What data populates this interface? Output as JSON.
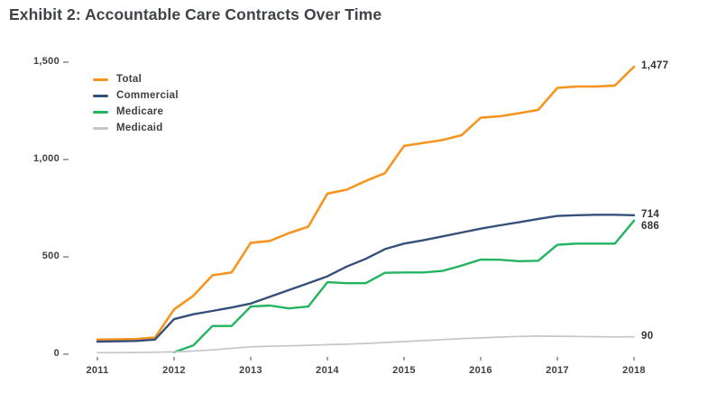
{
  "title": "Exhibit 2: Accountable Care Contracts Over Time",
  "chart_data": {
    "type": "line",
    "title": "Exhibit 2: Accountable Care Contracts Over Time",
    "xlabel": "",
    "ylabel": "",
    "grid": false,
    "legend_position": "top-left",
    "xlim": [
      2011,
      2018
    ],
    "ylim": [
      0,
      1500
    ],
    "x_ticks": [
      {
        "label": "2011",
        "value": 2011
      },
      {
        "label": "2012",
        "value": 2012
      },
      {
        "label": "2013",
        "value": 2013
      },
      {
        "label": "2014",
        "value": 2014
      },
      {
        "label": "2015",
        "value": 2015
      },
      {
        "label": "2016",
        "value": 2016
      },
      {
        "label": "2017",
        "value": 2017
      },
      {
        "label": "2018",
        "value": 2018
      }
    ],
    "y_ticks": [
      {
        "label": "0",
        "value": 0
      },
      {
        "label": "500",
        "value": 500
      },
      {
        "label": "1,000",
        "value": 1000
      },
      {
        "label": "1,500",
        "value": 1500
      }
    ],
    "x": [
      2011,
      2011.25,
      2011.5,
      2011.75,
      2012,
      2012.25,
      2012.5,
      2012.75,
      2013,
      2013.25,
      2013.5,
      2013.75,
      2014,
      2014.25,
      2014.5,
      2014.75,
      2015,
      2015.25,
      2015.5,
      2015.75,
      2016,
      2016.25,
      2016.5,
      2016.75,
      2017,
      2017.25,
      2017.5,
      2017.75,
      2018
    ],
    "series": [
      {
        "name": "Total",
        "color": "#F7941E",
        "stroke_width": 2.6,
        "end_label": "1,477",
        "values": [
          75,
          76,
          78,
          85,
          230,
          300,
          405,
          420,
          572,
          582,
          622,
          655,
          825,
          845,
          890,
          930,
          1070,
          1085,
          1100,
          1125,
          1215,
          1222,
          1238,
          1255,
          1368,
          1375,
          1375,
          1380,
          1477
        ]
      },
      {
        "name": "Commercial",
        "color": "#35507A",
        "stroke_width": 2.4,
        "end_label": "714",
        "values": [
          65,
          66,
          68,
          75,
          180,
          205,
          222,
          240,
          260,
          295,
          330,
          365,
          400,
          450,
          490,
          540,
          568,
          585,
          605,
          625,
          645,
          662,
          678,
          695,
          710,
          714,
          716,
          716,
          714
        ]
      },
      {
        "name": "Medicare",
        "color": "#22B45E",
        "stroke_width": 2.4,
        "end_label": "686",
        "values": [
          null,
          null,
          null,
          null,
          10,
          45,
          145,
          145,
          245,
          250,
          235,
          245,
          370,
          365,
          365,
          418,
          420,
          420,
          428,
          455,
          486,
          485,
          478,
          480,
          562,
          568,
          568,
          568,
          686
        ]
      },
      {
        "name": "Medicaid",
        "color": "#C6C6C6",
        "stroke_width": 1.7,
        "end_label": "90",
        "values": [
          8,
          8,
          9,
          10,
          12,
          16,
          22,
          30,
          38,
          41,
          43,
          46,
          49,
          52,
          55,
          60,
          65,
          70,
          75,
          80,
          84,
          88,
          91,
          93,
          92,
          91,
          90,
          89,
          90
        ]
      }
    ]
  }
}
